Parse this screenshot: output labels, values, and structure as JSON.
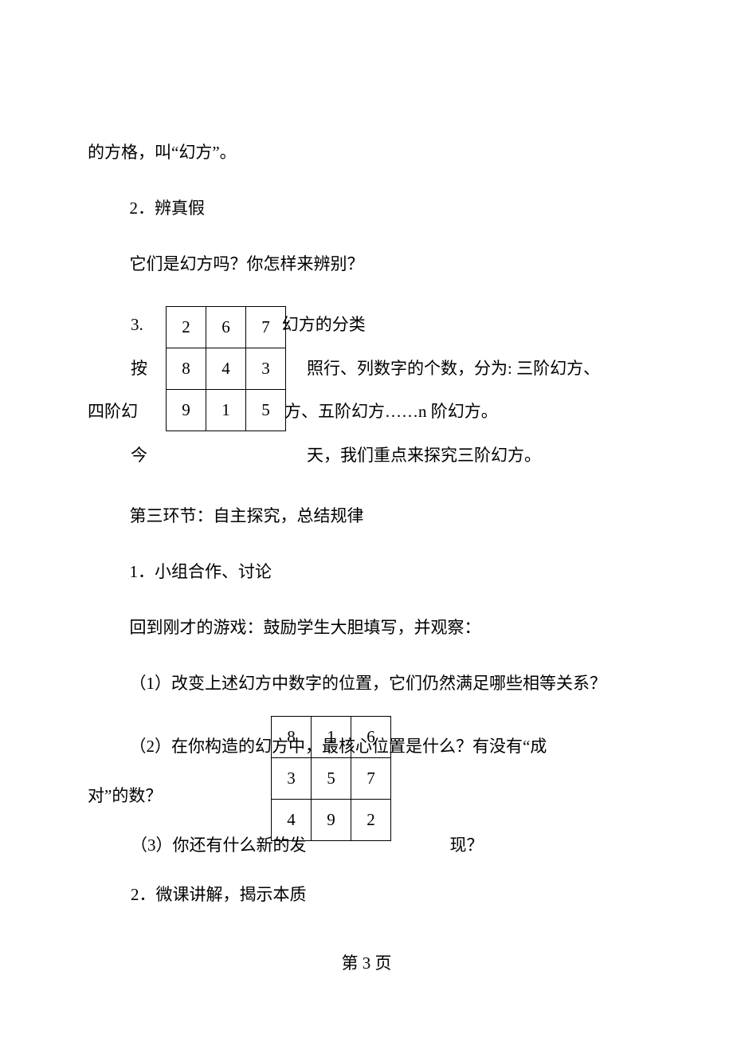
{
  "paragraphs": {
    "p1": "的方格，叫“幻方”。",
    "p2": "2．辨真假",
    "p3": "它们是幻方吗？你怎样来辨别？",
    "p5": "第三环节：自主探究，总结规律",
    "p6": "1．小组合作、讨论",
    "p7": "回到刚才的游戏：鼓励学生大胆填写，并观察：",
    "p8": "（1）改变上述幻方中数字的位置，它们仍然满足哪些相等关系？"
  },
  "wrap1": {
    "line1_left": "3.",
    "line1_right": "幻方的分类",
    "line2_left": "按",
    "line2_right": "照行、列数字的个数，分为: 三阶幻方、",
    "line3_left": "四阶幻",
    "line3_right": "方、五阶幻方……n 阶幻方。",
    "line4_left": "今",
    "line4_right": "天，我们重点来探究三阶幻方。"
  },
  "wrap2": {
    "line1": "（2）在你构造的幻方中，最核心位置是什么？有没有“成",
    "line1_end": "对”的数？",
    "line2_left": "（3）你还有什么新的发",
    "line2_right": "现？",
    "line3_left": "2．微课讲解，揭示本质"
  },
  "table1": {
    "rows": [
      [
        "2",
        "6",
        "7"
      ],
      [
        "8",
        "4",
        "3"
      ],
      [
        "9",
        "1",
        "5"
      ]
    ]
  },
  "table2": {
    "rows": [
      [
        "8",
        "1",
        "6"
      ],
      [
        "3",
        "5",
        "7"
      ],
      [
        "4",
        "9",
        "2"
      ]
    ]
  },
  "pageNumber": "第 3 页"
}
